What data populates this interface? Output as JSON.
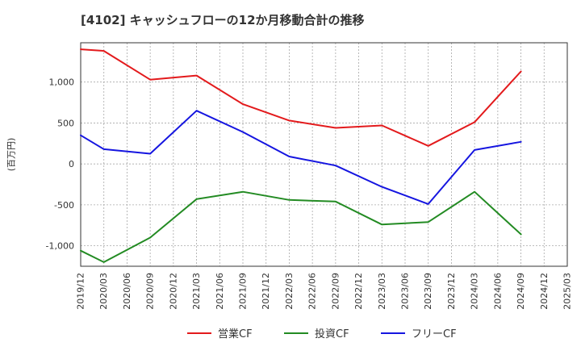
{
  "chart_data": {
    "type": "line",
    "title": "[4102]  キャッシュフローの12か月移動合計の推移",
    "ylabel": "(百万円)",
    "xlabel": "",
    "ylim": [
      -1250,
      1480
    ],
    "yticks": [
      -1000,
      -500,
      0,
      500,
      1000
    ],
    "ytick_labels": [
      "-1,000",
      "-500",
      "0",
      "500",
      "1,000"
    ],
    "categories": [
      "2019/12",
      "2020/03",
      "2020/06",
      "2020/09",
      "2020/12",
      "2021/03",
      "2021/06",
      "2021/09",
      "2021/12",
      "2022/03",
      "2022/06",
      "2022/09",
      "2022/12",
      "2023/03",
      "2023/06",
      "2023/09",
      "2023/12",
      "2024/03",
      "2024/06",
      "2024/09",
      "2024/12",
      "2025/03"
    ],
    "grid": true,
    "legend_position": "bottom",
    "series": [
      {
        "name": "営業CF",
        "color": "#e31a1c",
        "values": [
          1400,
          1380,
          null,
          1030,
          null,
          1080,
          null,
          730,
          null,
          530,
          null,
          440,
          null,
          470,
          null,
          220,
          null,
          510,
          null,
          1130,
          null,
          null
        ]
      },
      {
        "name": "投資CF",
        "color": "#238b23",
        "values": [
          -1060,
          -1200,
          null,
          -900,
          null,
          -430,
          null,
          -340,
          null,
          -440,
          null,
          -460,
          null,
          -740,
          null,
          -710,
          null,
          -340,
          null,
          -860,
          null,
          null
        ]
      },
      {
        "name": "フリーCF",
        "color": "#1515e0",
        "values": [
          350,
          180,
          null,
          125,
          null,
          650,
          null,
          390,
          null,
          90,
          null,
          -20,
          null,
          -280,
          null,
          -490,
          null,
          170,
          null,
          270,
          null,
          null
        ]
      }
    ]
  }
}
